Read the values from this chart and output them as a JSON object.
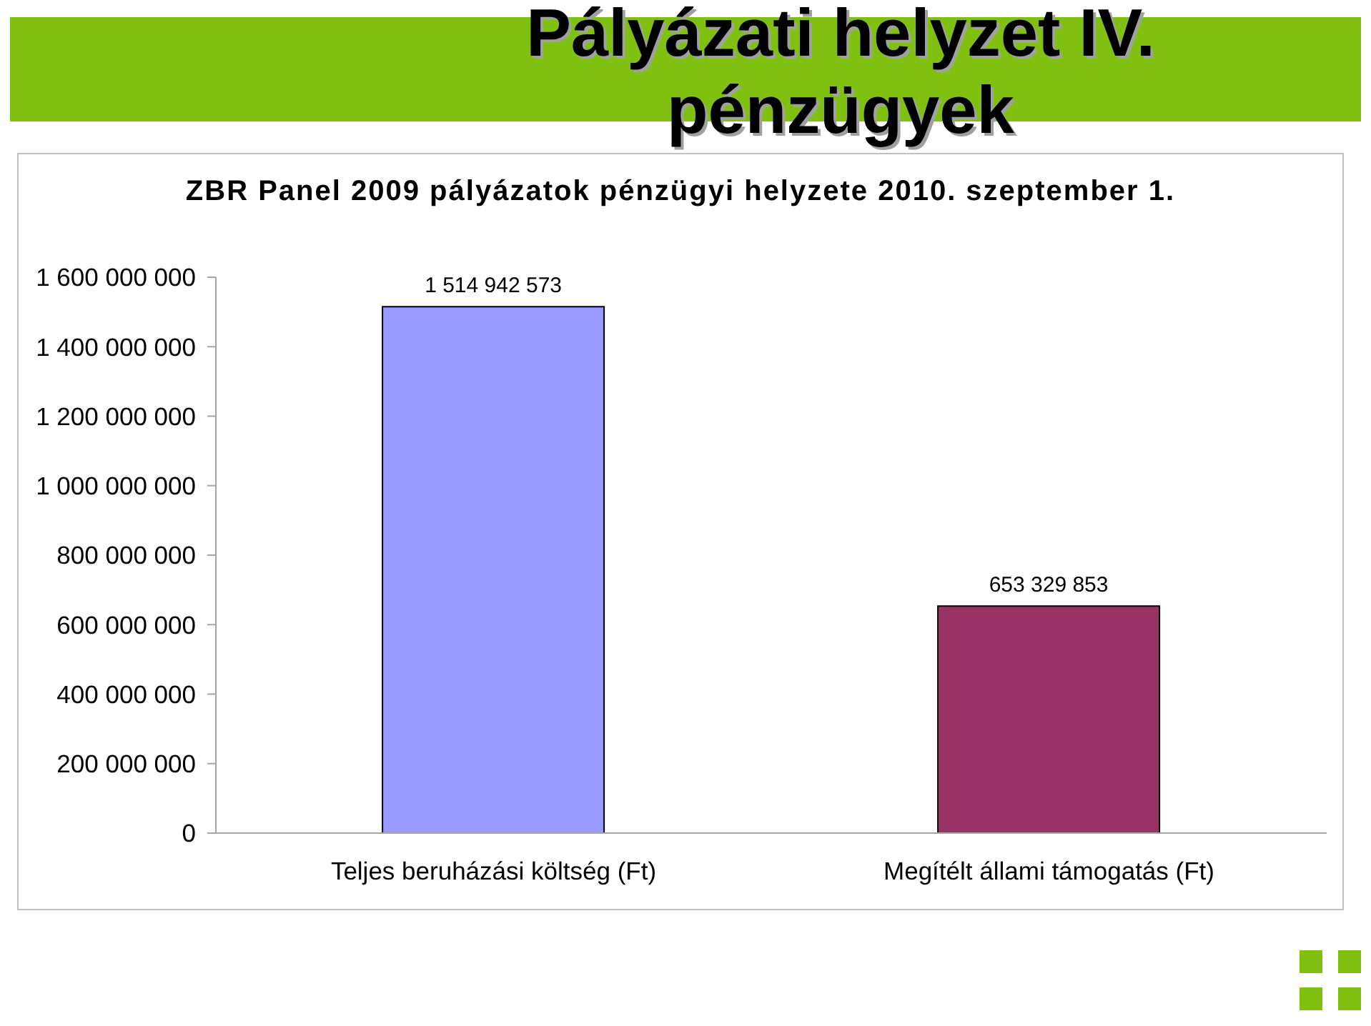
{
  "chart_data": {
    "type": "bar",
    "title": "Pályázati helyzet IV. pénzügyek",
    "subtitle": "ZBR Panel 2009 pályázatok pénzügyi helyzete 2010. szeptember 1.",
    "categories": [
      "Teljes beruházási költség (Ft)",
      "Megítélt állami támogatás (Ft)"
    ],
    "values": [
      1514942573,
      653329853
    ],
    "colors": [
      "#9999ff",
      "#993366"
    ],
    "value_labels": [
      "1 514 942 573",
      "653 329 853"
    ],
    "ylim": [
      0,
      1600000000
    ],
    "yticks": [
      0,
      {
        "value": 200000000,
        "label": "200 000 000"
      },
      {
        "value": 400000000,
        "label": "400 000 000"
      },
      {
        "value": 600000000,
        "label": "600 000 000"
      },
      {
        "value": 800000000,
        "label": "800 000 000"
      },
      {
        "value": 1000000000,
        "label": "1 000 000 000"
      },
      {
        "value": 1200000000,
        "label": "1 200 000 000"
      },
      {
        "value": 1400000000,
        "label": "1 400 000 000"
      },
      {
        "value": 1600000000,
        "label": "1 600 000 000"
      }
    ]
  }
}
